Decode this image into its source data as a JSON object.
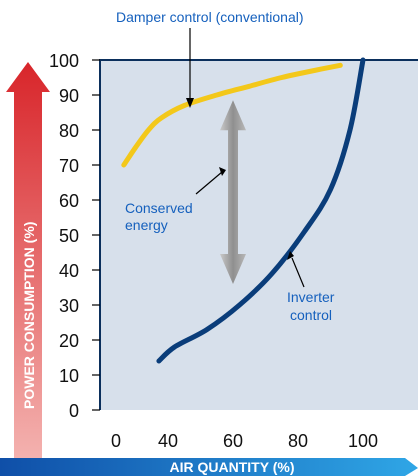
{
  "chart_data": {
    "type": "line",
    "xlabel": "AIR QUANTITY (%)",
    "ylabel": "POWER CONSUMPTION (%)",
    "x_ticks": [
      0,
      40,
      60,
      80,
      100
    ],
    "y_ticks": [
      0,
      10,
      20,
      30,
      40,
      50,
      60,
      70,
      80,
      90,
      100
    ],
    "xlim": [
      0,
      100
    ],
    "ylim": [
      0,
      100
    ],
    "grid": false,
    "colors": {
      "plot_background": "#d7e0eb",
      "frame": "#0b2f5c",
      "y_axis_arrow_top": "#d8252a",
      "y_axis_arrow_bottom": "#f5b8b5",
      "x_axis_arrow_left": "#0f4fa8",
      "x_axis_arrow_right": "#2fa6e6",
      "arrow_gray": "#9a9a9a"
    },
    "series": [
      {
        "name": "Damper control (conventional)",
        "color": "#f3c81a",
        "x": [
          6,
          15,
          25,
          35,
          45,
          55,
          65,
          75,
          85,
          93
        ],
        "y": [
          70,
          75,
          80,
          83.5,
          87,
          90,
          92.5,
          95,
          97,
          98.5
        ]
      },
      {
        "name": "Inverter control",
        "color": "#0a3d7a",
        "x": [
          33,
          42,
          52,
          62,
          72,
          82,
          90,
          96,
          100
        ],
        "y": [
          14,
          18,
          23,
          30,
          39,
          51,
          63,
          80,
          100
        ]
      }
    ],
    "annotations": {
      "damper_label": "Damper control (conventional)",
      "inverter_label_line1": "Inverter",
      "inverter_label_line2": "control",
      "conserved_line1": "Conserved",
      "conserved_line2": "energy",
      "conserved_arrow_range": {
        "x": 60,
        "y_top": 88.5,
        "y_bottom": 36
      }
    }
  }
}
